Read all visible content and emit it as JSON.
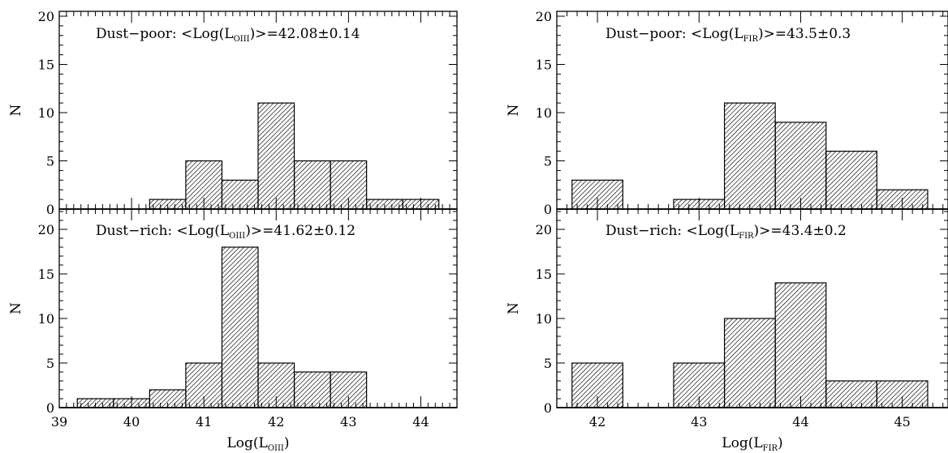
{
  "chart_data": [
    {
      "type": "bar",
      "histogram": true,
      "panel": "top-left",
      "annotation": {
        "prefix": "Dust−poor: <Log(L",
        "sub": "OIII",
        "suffix": ")>=42.08±0.14"
      },
      "ylabel": "N",
      "xlabel": "",
      "xlim": [
        39,
        44.5
      ],
      "ylim": [
        0,
        23
      ],
      "bin_width": 0.5,
      "bin_starts": [
        40.25,
        40.75,
        41.25,
        41.75,
        42.25,
        42.75,
        43.25,
        43.75
      ],
      "values": [
        1,
        5,
        3,
        11,
        5,
        5,
        1,
        1
      ],
      "xticks": [],
      "yticks": [
        "0",
        "5",
        "10",
        "15",
        "20"
      ]
    },
    {
      "type": "bar",
      "histogram": true,
      "panel": "bottom-left",
      "annotation": {
        "prefix": "Dust−rich: <Log(L",
        "sub": "OIII",
        "suffix": ")>=41.62±0.12"
      },
      "ylabel": "N",
      "xlabel": {
        "prefix": "Log(L",
        "sub": "OIII",
        "suffix": ")"
      },
      "xlim": [
        39,
        44.5
      ],
      "ylim": [
        0,
        23
      ],
      "bin_width": 0.5,
      "bin_starts": [
        39.25,
        39.75,
        40.25,
        40.75,
        41.25,
        41.75,
        42.25,
        42.75
      ],
      "values": [
        1,
        1,
        2,
        5,
        18,
        5,
        4,
        4
      ],
      "xticks": [
        "39",
        "40",
        "41",
        "42",
        "43",
        "44"
      ],
      "yticks": [
        "0",
        "5",
        "10",
        "15",
        "20"
      ]
    },
    {
      "type": "bar",
      "histogram": true,
      "panel": "top-right",
      "annotation": {
        "prefix": "Dust−poor: <Log(L",
        "sub": "FIR",
        "suffix": ")>=43.5±0.3"
      },
      "ylabel": "N",
      "xlabel": "",
      "xlim": [
        41.6,
        45.45
      ],
      "ylim": [
        0,
        23
      ],
      "bin_width": 0.5,
      "bin_starts": [
        41.75,
        42.25,
        42.75,
        43.25,
        43.75,
        44.25,
        44.75
      ],
      "values": [
        3,
        0,
        1,
        11,
        9,
        6,
        2
      ],
      "xticks": [],
      "yticks": [
        "0",
        "5",
        "10",
        "15",
        "20"
      ]
    },
    {
      "type": "bar",
      "histogram": true,
      "panel": "bottom-right",
      "annotation": {
        "prefix": "Dust−rich: <Log(L",
        "sub": "FIR",
        "suffix": ")>=43.4±0.2"
      },
      "ylabel": "N",
      "xlabel": {
        "prefix": "Log(L",
        "sub": "FIR",
        "suffix": ")"
      },
      "xlim": [
        41.6,
        45.45
      ],
      "ylim": [
        0,
        23
      ],
      "bin_width": 0.5,
      "bin_starts": [
        41.75,
        42.25,
        42.75,
        43.25,
        43.75,
        44.25,
        44.75
      ],
      "values": [
        5,
        0,
        5,
        10,
        14,
        3,
        3
      ],
      "xticks": [
        "42",
        "43",
        "44",
        "45"
      ],
      "yticks": [
        "0",
        "5",
        "10",
        "15",
        "20"
      ]
    }
  ]
}
